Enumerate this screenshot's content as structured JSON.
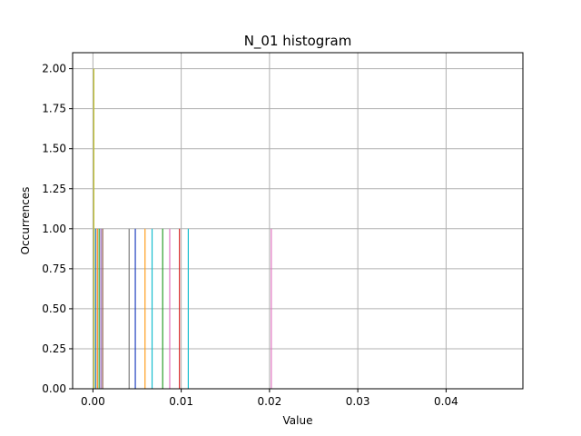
{
  "chart_data": {
    "type": "bar",
    "title": "N_01 histogram",
    "xlabel": "Value",
    "ylabel": "Occurrences",
    "xlim": [
      -0.0023,
      0.0487
    ],
    "ylim": [
      0,
      2.1
    ],
    "grid": true,
    "xticks": [
      0.0,
      0.01,
      0.02,
      0.03,
      0.04
    ],
    "xtick_labels": [
      "0.00",
      "0.01",
      "0.02",
      "0.03",
      "0.04"
    ],
    "yticks": [
      0.0,
      0.25,
      0.5,
      0.75,
      1.0,
      1.25,
      1.5,
      1.75,
      2.0
    ],
    "ytick_labels": [
      "0.00",
      "0.25",
      "0.50",
      "0.75",
      "1.00",
      "1.25",
      "1.50",
      "1.75",
      "2.00"
    ],
    "bars": [
      {
        "x": 0.0001,
        "value": 2,
        "color": "#bcbd22"
      },
      {
        "x": 0.0003,
        "value": 1,
        "color": "#1f77b4"
      },
      {
        "x": 0.0005,
        "value": 1,
        "color": "#ff7f0e"
      },
      {
        "x": 0.0007,
        "value": 1,
        "color": "#2ca02c"
      },
      {
        "x": 0.0009,
        "value": 1,
        "color": "#9467bd"
      },
      {
        "x": 0.0011,
        "value": 1,
        "color": "#8c564b"
      },
      {
        "x": 0.0041,
        "value": 1,
        "color": "#7f7f7f"
      },
      {
        "x": 0.0048,
        "value": 1,
        "color": "#1f3fbf"
      },
      {
        "x": 0.0059,
        "value": 1,
        "color": "#ff9f1f"
      },
      {
        "x": 0.0067,
        "value": 1,
        "color": "#17becf"
      },
      {
        "x": 0.0079,
        "value": 1,
        "color": "#2ca02c"
      },
      {
        "x": 0.0087,
        "value": 1,
        "color": "#e377c2"
      },
      {
        "x": 0.0098,
        "value": 1,
        "color": "#d62728"
      },
      {
        "x": 0.0108,
        "value": 1,
        "color": "#17becf"
      },
      {
        "x": 0.0202,
        "value": 1,
        "color": "#e377c2"
      }
    ]
  }
}
